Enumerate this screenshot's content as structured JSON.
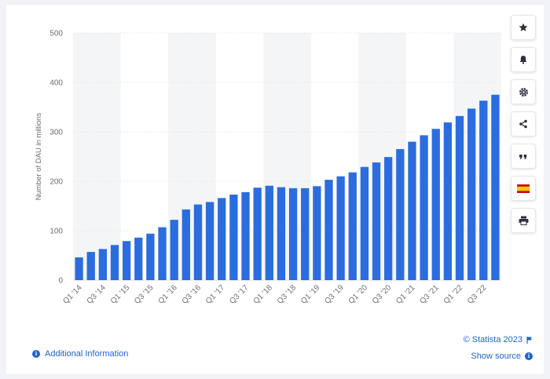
{
  "chart_data": {
    "type": "bar",
    "ylabel": "Number of DAU in millions",
    "ylim": [
      0,
      500
    ],
    "yticks": [
      0,
      100,
      200,
      300,
      400,
      500
    ],
    "grid": true,
    "bar_color": "#2b6dde",
    "band_color": "#f4f5f7",
    "categories": [
      "Q1 '14",
      "Q2 '14",
      "Q3 '14",
      "Q4 '14",
      "Q1 '15",
      "Q2 '15",
      "Q3 '15",
      "Q4 '15",
      "Q1 '16",
      "Q2 '16",
      "Q3 '16",
      "Q4 '16",
      "Q1 '17",
      "Q2 '17",
      "Q3 '17",
      "Q4 '17",
      "Q1 '18",
      "Q2 '18",
      "Q3 '18",
      "Q4 '18",
      "Q1 '19",
      "Q2 '19",
      "Q3 '19",
      "Q4 '19",
      "Q1 '20",
      "Q2 '20",
      "Q3 '20",
      "Q4 '20",
      "Q1 '21",
      "Q2 '21",
      "Q3 '21",
      "Q4 '21",
      "Q1 '22",
      "Q2 '22",
      "Q3 '22",
      "Q4 '22"
    ],
    "visible_tick_labels": [
      "Q1 '14",
      "",
      "Q3 '14",
      "",
      "Q1 '15",
      "",
      "Q3 '15",
      "",
      "Q1 '16",
      "",
      "Q3 '16",
      "",
      "Q1 '17",
      "",
      "Q3 '17",
      "",
      "Q1 '18",
      "",
      "Q3 '18",
      "",
      "Q1 '19",
      "",
      "Q3 '19",
      "",
      "Q1 '20",
      "",
      "Q3 '20",
      "",
      "Q1 '21",
      "",
      "Q3 '21",
      "",
      "Q1 '22",
      "",
      "Q3 '22",
      ""
    ],
    "values": [
      46,
      57,
      63,
      71,
      79,
      86,
      94,
      107,
      122,
      143,
      153,
      158,
      166,
      173,
      178,
      187,
      191,
      188,
      186,
      186,
      190,
      203,
      210,
      218,
      229,
      238,
      249,
      265,
      280,
      293,
      306,
      319,
      332,
      347,
      363,
      375
    ]
  },
  "toolbar": {
    "icons": [
      "star-icon",
      "bell-icon",
      "gear-icon",
      "share-icon",
      "quote-icon",
      "flag-icon",
      "print-icon"
    ]
  },
  "footer": {
    "additional_info": "Additional Information",
    "copyright": "© Statista 2023",
    "show_source": "Show source"
  }
}
